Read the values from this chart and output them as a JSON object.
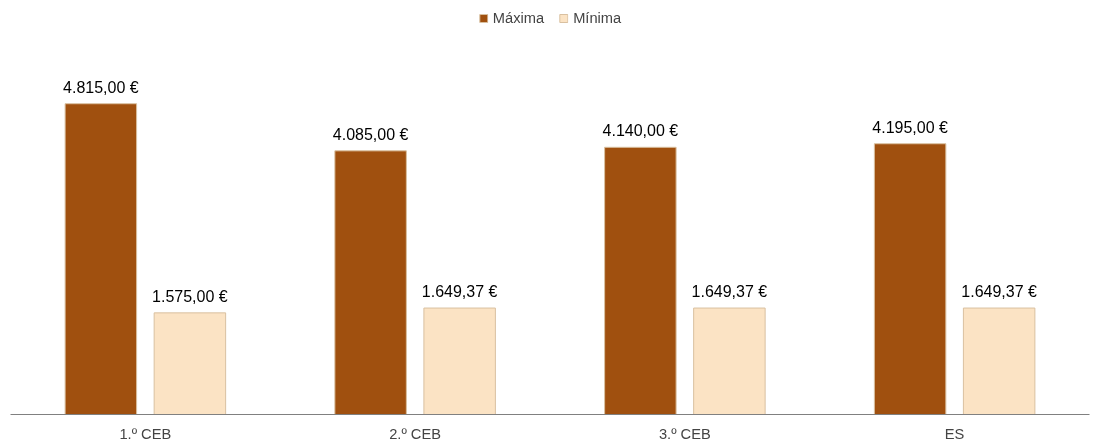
{
  "chart_data": {
    "type": "bar",
    "categories": [
      "1.º CEB",
      "2.º CEB",
      "3.º CEB",
      "ES"
    ],
    "series": [
      {
        "name": "Máxima",
        "color": "#a0500f",
        "values": [
          4815,
          4085,
          4140,
          4195
        ],
        "value_labels": [
          "4.815,00 €",
          "4.085,00 €",
          "4.140,00 €",
          "4.195,00 €"
        ]
      },
      {
        "name": "Mínima",
        "color": "#fbe3c4",
        "values": [
          1575,
          1649.37,
          1649.37,
          1649.37
        ],
        "value_labels": [
          "1.575,00 €",
          "1.649,37 €",
          "1.649,37 €",
          "1.649,37 €"
        ]
      }
    ],
    "legend": "top",
    "grid": false
  }
}
